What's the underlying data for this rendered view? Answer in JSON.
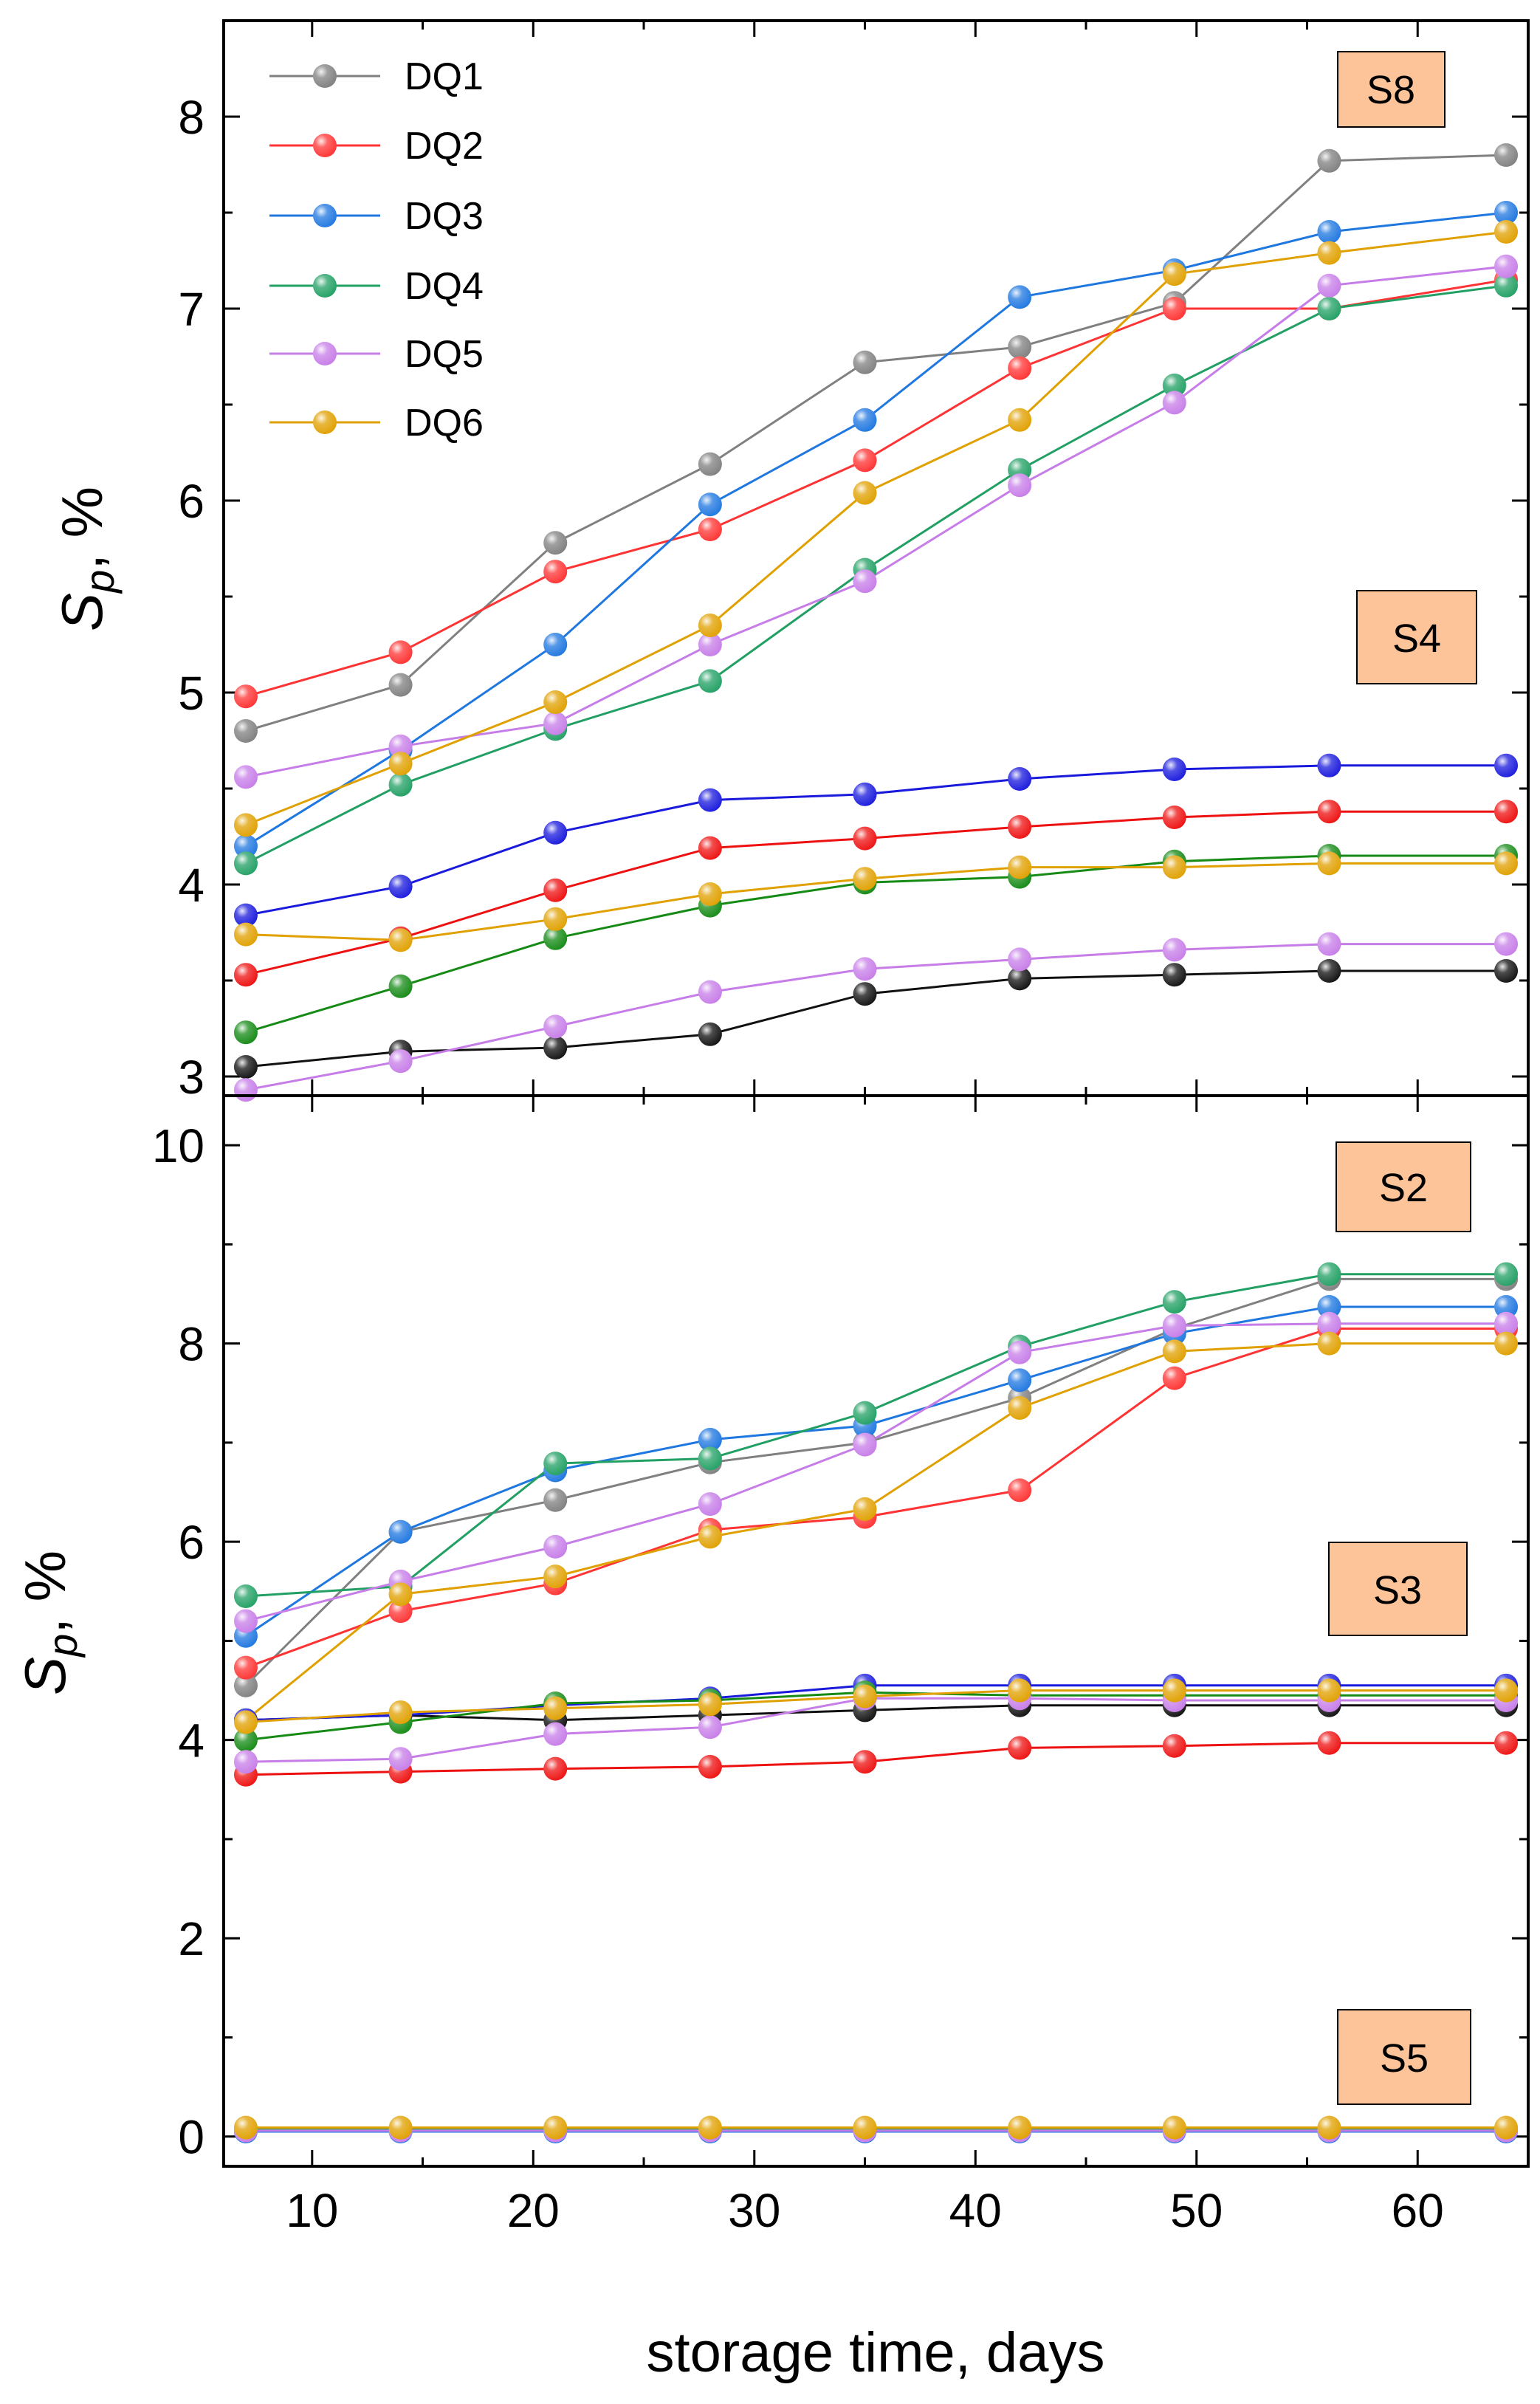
{
  "chart_data": [
    {
      "type": "line",
      "panel": "top",
      "xlabel": "storage time, days",
      "ylabel_main": "S",
      "ylabel_sub": "p",
      "ylabel_unit": ", %",
      "xlim": [
        6,
        65
      ],
      "ylim": [
        2.9,
        8.5
      ],
      "xticks": [
        10,
        20,
        30,
        40,
        50,
        60
      ],
      "xtick_labels": [
        "10",
        "20",
        "30",
        "40",
        "50",
        "60"
      ],
      "yticks": [
        3,
        4,
        5,
        6,
        7,
        8
      ],
      "ytick_labels": [
        "3",
        "4",
        "5",
        "6",
        "7",
        "8"
      ],
      "x": [
        7,
        14,
        21,
        28,
        35,
        42,
        49,
        56,
        64
      ],
      "legend_position": "top-left",
      "legend": [
        {
          "label": "DQ1",
          "color": "#808080"
        },
        {
          "label": "DQ2",
          "color": "#ff3333"
        },
        {
          "label": "DQ3",
          "color": "#1f77e0"
        },
        {
          "label": "DQ4",
          "color": "#22a064"
        },
        {
          "label": "DQ5",
          "color": "#c77de8"
        },
        {
          "label": "DQ6",
          "color": "#e0a000"
        }
      ],
      "groups": [
        {
          "label": "S8",
          "series": [
            {
              "name": "DQ1",
              "color": "#808080",
              "values": [
                4.8,
                5.04,
                5.78,
                6.19,
                6.72,
                6.8,
                7.03,
                7.77,
                7.8
              ]
            },
            {
              "name": "DQ2",
              "color": "#ff3333",
              "values": [
                4.98,
                5.21,
                5.63,
                5.85,
                6.21,
                6.69,
                7.0,
                7.0,
                7.15
              ]
            },
            {
              "name": "DQ3",
              "color": "#1f77e0",
              "values": [
                4.2,
                4.7,
                5.25,
                5.98,
                6.42,
                7.06,
                7.2,
                7.4,
                7.5
              ]
            },
            {
              "name": "DQ4",
              "color": "#22a064",
              "values": [
                4.11,
                4.52,
                4.81,
                5.06,
                5.64,
                6.16,
                6.6,
                7.0,
                7.12
              ]
            },
            {
              "name": "DQ5",
              "color": "#c77de8",
              "values": [
                4.56,
                4.72,
                4.84,
                5.25,
                5.58,
                6.08,
                6.51,
                7.12,
                7.22
              ]
            },
            {
              "name": "DQ6",
              "color": "#e0a000",
              "values": [
                4.31,
                4.63,
                4.95,
                5.35,
                6.04,
                6.42,
                7.18,
                7.29,
                7.4
              ]
            }
          ]
        },
        {
          "label": "S4",
          "series": [
            {
              "name": "DQ1",
              "color": "#111111",
              "values": [
                3.05,
                3.13,
                3.15,
                3.22,
                3.43,
                3.51,
                3.53,
                3.55,
                3.55
              ]
            },
            {
              "name": "DQ2",
              "color": "#ee1111",
              "values": [
                3.53,
                3.72,
                3.97,
                4.19,
                4.24,
                4.3,
                4.35,
                4.38,
                4.38
              ]
            },
            {
              "name": "DQ3",
              "color": "#1a1add",
              "values": [
                3.84,
                3.99,
                4.27,
                4.44,
                4.47,
                4.55,
                4.6,
                4.62,
                4.62
              ]
            },
            {
              "name": "DQ4",
              "color": "#158a15",
              "values": [
                3.23,
                3.47,
                3.72,
                3.89,
                4.01,
                4.04,
                4.12,
                4.15,
                4.15
              ]
            },
            {
              "name": "DQ5",
              "color": "#c77de8",
              "values": [
                2.93,
                3.08,
                3.26,
                3.44,
                3.56,
                3.61,
                3.66,
                3.69,
                3.69
              ]
            },
            {
              "name": "DQ6",
              "color": "#e0a000",
              "values": [
                3.74,
                3.71,
                3.82,
                3.95,
                4.03,
                4.09,
                4.09,
                4.11,
                4.11
              ]
            }
          ]
        }
      ]
    },
    {
      "type": "line",
      "panel": "bottom",
      "xlabel": "storage time, days",
      "ylabel_main": "S",
      "ylabel_sub": "p",
      "ylabel_unit": ", %",
      "xlim": [
        6,
        65
      ],
      "ylim": [
        -0.3,
        10.5
      ],
      "xticks": [
        10,
        20,
        30,
        40,
        50,
        60
      ],
      "xtick_labels": [
        "10",
        "20",
        "30",
        "40",
        "50",
        "60"
      ],
      "yticks": [
        0,
        2,
        4,
        6,
        8,
        10
      ],
      "ytick_labels": [
        "0",
        "2",
        "4",
        "6",
        "8",
        "10"
      ],
      "x": [
        7,
        14,
        21,
        28,
        35,
        42,
        49,
        56,
        64
      ],
      "groups": [
        {
          "label": "S2",
          "series": [
            {
              "name": "DQ1",
              "color": "#808080",
              "values": [
                4.55,
                6.1,
                6.42,
                6.8,
                7.0,
                7.45,
                8.15,
                8.65,
                8.65
              ]
            },
            {
              "name": "DQ2",
              "color": "#ff3333",
              "values": [
                4.73,
                5.3,
                5.58,
                6.12,
                6.25,
                6.52,
                7.65,
                8.15,
                8.15
              ]
            },
            {
              "name": "DQ3",
              "color": "#1f77e0",
              "values": [
                5.05,
                6.1,
                6.72,
                7.03,
                7.17,
                7.63,
                8.1,
                8.37,
                8.37
              ]
            },
            {
              "name": "DQ4",
              "color": "#22a064",
              "values": [
                5.45,
                5.55,
                6.79,
                6.84,
                7.3,
                7.97,
                8.42,
                8.7,
                8.7
              ]
            },
            {
              "name": "DQ5",
              "color": "#c77de8",
              "values": [
                5.2,
                5.6,
                5.95,
                6.38,
                6.98,
                7.91,
                8.18,
                8.2,
                8.2
              ]
            },
            {
              "name": "DQ6",
              "color": "#e0a000",
              "values": [
                4.2,
                5.47,
                5.65,
                6.05,
                6.33,
                7.35,
                7.92,
                8.0,
                8.0
              ]
            }
          ]
        },
        {
          "label": "S3",
          "series": [
            {
              "name": "DQ1",
              "color": "#111111",
              "values": [
                4.2,
                4.25,
                4.2,
                4.25,
                4.3,
                4.35,
                4.35,
                4.35,
                4.35
              ]
            },
            {
              "name": "DQ2",
              "color": "#ee1111",
              "values": [
                3.65,
                3.68,
                3.71,
                3.73,
                3.78,
                3.92,
                3.94,
                3.97,
                3.97
              ]
            },
            {
              "name": "DQ3",
              "color": "#1a1add",
              "values": [
                4.2,
                4.25,
                4.35,
                4.42,
                4.55,
                4.55,
                4.55,
                4.55,
                4.55
              ]
            },
            {
              "name": "DQ4",
              "color": "#158a15",
              "values": [
                4.0,
                4.18,
                4.37,
                4.4,
                4.48,
                4.45,
                4.45,
                4.45,
                4.45
              ]
            },
            {
              "name": "DQ5",
              "color": "#c77de8",
              "values": [
                3.78,
                3.81,
                4.06,
                4.13,
                4.42,
                4.42,
                4.4,
                4.4,
                4.4
              ]
            },
            {
              "name": "DQ6",
              "color": "#e0a000",
              "values": [
                4.18,
                4.28,
                4.32,
                4.36,
                4.44,
                4.5,
                4.5,
                4.5,
                4.5
              ]
            }
          ]
        },
        {
          "label": "S5",
          "series": [
            {
              "name": "DQ3",
              "color": "#1f77e0",
              "values": [
                0.05,
                0.05,
                0.05,
                0.05,
                0.05,
                0.05,
                0.05,
                0.05,
                0.05
              ]
            },
            {
              "name": "DQ4",
              "color": "#22a064",
              "values": [
                0.07,
                0.07,
                0.07,
                0.07,
                0.07,
                0.07,
                0.07,
                0.07,
                0.07
              ]
            },
            {
              "name": "DQ5",
              "color": "#c77de8",
              "values": [
                0.06,
                0.06,
                0.06,
                0.06,
                0.06,
                0.06,
                0.06,
                0.06,
                0.06
              ]
            },
            {
              "name": "DQ6",
              "color": "#e0a000",
              "values": [
                0.09,
                0.09,
                0.09,
                0.09,
                0.09,
                0.09,
                0.09,
                0.09,
                0.09
              ]
            }
          ]
        }
      ]
    }
  ]
}
